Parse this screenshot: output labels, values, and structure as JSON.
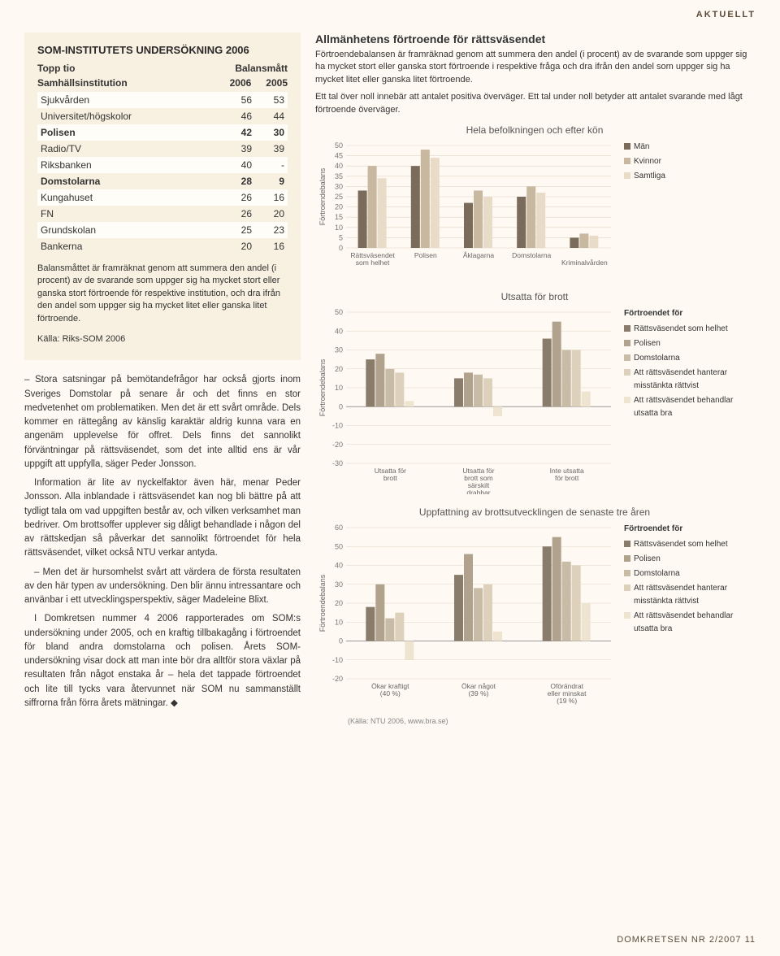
{
  "header_tag": "AKTUELLT",
  "footer": "DOMKRETSEN NR 2/2007  11",
  "survey": {
    "title": "SOM-INSTITUTETS UNDERSÖKNING 2006",
    "sub_left": "Topp tio",
    "sub_mid": "Balansmått",
    "sub_institution": "Samhällsinstitution",
    "years": [
      "2006",
      "2005"
    ],
    "rows": [
      {
        "name": "Sjukvården",
        "a": "56",
        "b": "53",
        "hl": false
      },
      {
        "name": "Universitet/högskolor",
        "a": "46",
        "b": "44",
        "hl": false
      },
      {
        "name": "Polisen",
        "a": "42",
        "b": "30",
        "hl": true
      },
      {
        "name": "Radio/TV",
        "a": "39",
        "b": "39",
        "hl": false
      },
      {
        "name": "Riksbanken",
        "a": "40",
        "b": "-",
        "hl": false
      },
      {
        "name": "Domstolarna",
        "a": "28",
        "b": "9",
        "hl": true
      },
      {
        "name": "Kungahuset",
        "a": "26",
        "b": "16",
        "hl": false
      },
      {
        "name": "FN",
        "a": "26",
        "b": "20",
        "hl": false
      },
      {
        "name": "Grundskolan",
        "a": "25",
        "b": "23",
        "hl": false
      },
      {
        "name": "Bankerna",
        "a": "20",
        "b": "16",
        "hl": false
      }
    ],
    "note": "Balansmåttet är framräknat genom att summera den andel (i procent) av de svarande som uppger sig ha mycket stort eller ganska stort förtroende för respektive institution, och dra ifrån den andel som uppger sig ha mycket litet eller ganska litet förtroende.",
    "source": "Källa: Riks-SOM 2006"
  },
  "body_paragraphs": [
    "– Stora satsningar på bemötandefrågor har också gjorts inom Sveriges Domstolar på senare år och det finns en stor medvetenhet om problematiken. Men det är ett svårt område. Dels kommer en rättegång av känslig karaktär aldrig kunna vara en angenäm upplevelse för offret. Dels finns det sannolikt förväntningar på rättsväsendet, som det inte alltid ens är vår uppgift att uppfylla, säger Peder Jonsson.",
    "Information är lite av nyckelfaktor även här, menar Peder Jonsson. Alla inblandade i rättsväsendet kan nog bli bättre på att tydligt tala om vad uppgiften består av, och vilken verksamhet man bedriver. Om brottsoffer upplever sig dåligt behandlade i någon del av rättskedjan så påverkar det sannolikt förtroendet för hela rättsväsendet, vilket också NTU verkar antyda.",
    "– Men det är hursomhelst svårt att värdera de första resultaten av den här typen av undersökning. Den blir ännu intressantare och använbar i ett utvecklingsperspektiv, säger Madeleine Blixt.",
    "I Domkretsen nummer 4 2006 rapporterades om SOM:s undersökning under 2005, och en kraftig tillbakagång i förtroendet för bland andra domstolarna och polisen. Årets SOM-undersökning visar dock att man inte bör dra alltför stora växlar på resultaten från något enstaka år – hela det tappade förtroendet och lite till tycks vara återvunnet när SOM nu sammanställt siffrorna från förra årets mätningar. ◆"
  ],
  "intro": {
    "title": "Allmänhetens förtroende för rättsväsendet",
    "p1": "Förtroendebalansen är framräknad genom att summera den andel (i procent) av de svarande som uppger sig ha mycket stort eller ganska stort förtroende i respektive fråga och dra ifrån den andel som uppger sig ha mycket litet eller ganska litet förtroende.",
    "p2": "Ett tal över noll innebär att antalet positiva överväger. Ett tal under noll betyder att antalet svarande med lågt förtroende överväger."
  },
  "chart1": {
    "title": "Hela befolkningen och efter kön",
    "ylabel": "Förtroendebalans",
    "y_max": 50,
    "y_step": 5,
    "categories": [
      "Rättsväsendet som helhet",
      "Polisen",
      "Åklagarna",
      "Domstolarna",
      "Kriminalvården"
    ],
    "series": [
      {
        "name": "Män",
        "color": "#7a6b5a",
        "values": [
          28,
          40,
          22,
          25,
          5
        ]
      },
      {
        "name": "Kvinnor",
        "color": "#c9b8a0",
        "values": [
          40,
          48,
          28,
          30,
          7
        ]
      },
      {
        "name": "Samtliga",
        "color": "#e8dcc8",
        "values": [
          34,
          44,
          25,
          27,
          6
        ]
      }
    ]
  },
  "chart2": {
    "title": "Utsatta för brott",
    "ylabel": "Förtroendebalans",
    "y_min": -30,
    "y_max": 50,
    "y_step": 10,
    "categories": [
      "Utsatta för brott",
      "Utsatta för brott som särskilt drabbar integriteten",
      "Inte utsatta för brott"
    ],
    "legend_title": "Förtroendet för",
    "series": [
      {
        "name": "Rättsväsendet som helhet",
        "color": "#8a7c6a",
        "values": [
          25,
          15,
          36
        ]
      },
      {
        "name": "Polisen",
        "color": "#b0a28c",
        "values": [
          28,
          18,
          45
        ]
      },
      {
        "name": "Domstolarna",
        "color": "#c9bca6",
        "values": [
          20,
          17,
          30
        ]
      },
      {
        "name": "Att rättsväsendet hanterar misstänkta rättvist",
        "color": "#ddd1bb",
        "values": [
          18,
          15,
          30
        ]
      },
      {
        "name": "Att rättsväsendet behandlar utsatta bra",
        "color": "#eee4d0",
        "values": [
          3,
          -5,
          8
        ]
      }
    ]
  },
  "chart3": {
    "title": "Uppfattning av brottsutvecklingen de senaste tre åren",
    "ylabel": "Förtroendebalans",
    "y_min": -20,
    "y_max": 60,
    "y_step": 10,
    "categories": [
      "Ökar kraftigt (40 %)",
      "Ökar något (39 %)",
      "Oförändrat eller minskat (19 %)"
    ],
    "legend_title": "Förtroendet för",
    "series": [
      {
        "name": "Rättsväsendet som helhet",
        "color": "#8a7c6a",
        "values": [
          18,
          35,
          50
        ]
      },
      {
        "name": "Polisen",
        "color": "#b0a28c",
        "values": [
          30,
          46,
          55
        ]
      },
      {
        "name": "Domstolarna",
        "color": "#c9bca6",
        "values": [
          12,
          28,
          42
        ]
      },
      {
        "name": "Att rättsväsendet hanterar misstänkta rättvist",
        "color": "#ddd1bb",
        "values": [
          15,
          30,
          40
        ]
      },
      {
        "name": "Att rättsväsendet behandlar utsatta bra",
        "color": "#eee4d0",
        "values": [
          -10,
          5,
          20
        ]
      }
    ]
  },
  "chart_source": "(Källa: NTU 2006, www.bra.se)"
}
